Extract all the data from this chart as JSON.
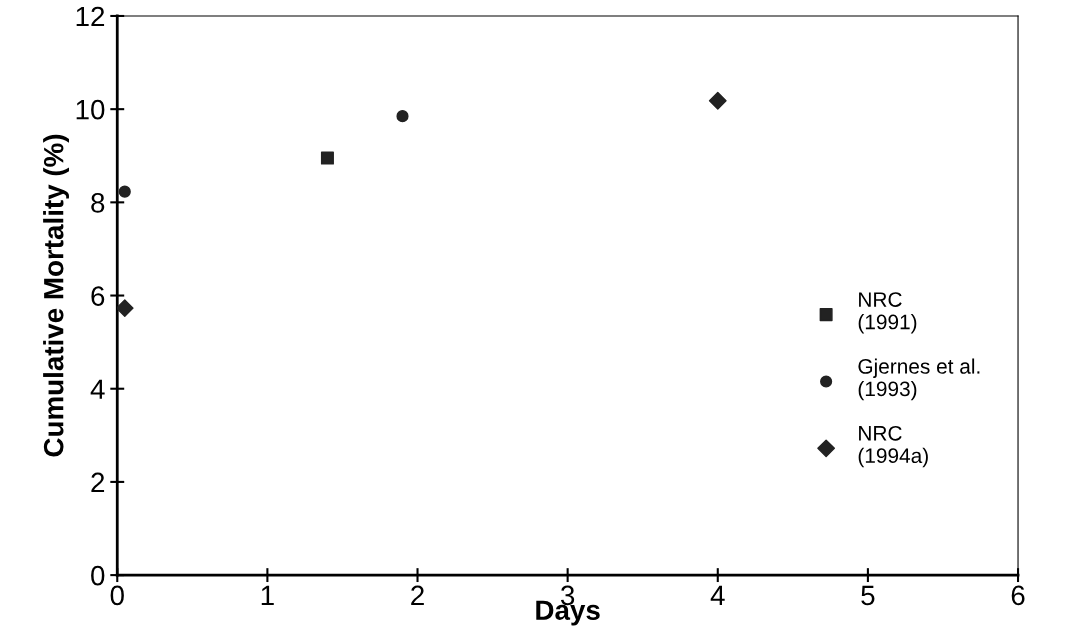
{
  "chart_data": {
    "type": "scatter",
    "xlabel": "Days",
    "ylabel": "Cumulative Mortality (%)",
    "xlim": [
      0,
      6
    ],
    "ylim": [
      0,
      12
    ],
    "xticks": [
      0,
      1,
      2,
      3,
      4,
      5,
      6
    ],
    "yticks": [
      0,
      2,
      4,
      6,
      8,
      10,
      12
    ],
    "grid": false,
    "legend": "right",
    "series": [
      {
        "name": "NRC\n(1991)",
        "color": "#222222",
        "marker": "square",
        "x": [
          1.4
        ],
        "values": [
          8.95
        ]
      },
      {
        "name": "Gjernes et al.\n(1993)",
        "color": "#222222",
        "marker": "circle",
        "x": [
          0.05,
          1.9
        ],
        "values": [
          8.23,
          9.85
        ]
      },
      {
        "name": "NRC\n(1994a)",
        "color": "#222222",
        "marker": "diamond",
        "x": [
          0.05,
          4.0
        ],
        "values": [
          5.73,
          10.18
        ]
      }
    ]
  }
}
